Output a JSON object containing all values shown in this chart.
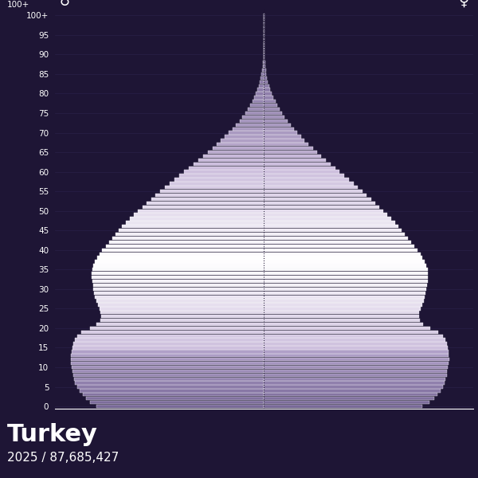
{
  "title": "Turkey",
  "subtitle": "2025 / 87,685,427",
  "male_symbol": "♂",
  "female_symbol": "♀",
  "bg_color": "#1e1535",
  "bar_edge_color": "white",
  "center_line_color": "#2a1f4a",
  "grid_color": "#2e2550",
  "text_color": "white",
  "ages": [
    0,
    1,
    2,
    3,
    4,
    5,
    6,
    7,
    8,
    9,
    10,
    11,
    12,
    13,
    14,
    15,
    16,
    17,
    18,
    19,
    20,
    21,
    22,
    23,
    24,
    25,
    26,
    27,
    28,
    29,
    30,
    31,
    32,
    33,
    34,
    35,
    36,
    37,
    38,
    39,
    40,
    41,
    42,
    43,
    44,
    45,
    46,
    47,
    48,
    49,
    50,
    51,
    52,
    53,
    54,
    55,
    56,
    57,
    58,
    59,
    60,
    61,
    62,
    63,
    64,
    65,
    66,
    67,
    68,
    69,
    70,
    71,
    72,
    73,
    74,
    75,
    76,
    77,
    78,
    79,
    80,
    81,
    82,
    83,
    84,
    85,
    86,
    87,
    88,
    89,
    90,
    91,
    92,
    93,
    94,
    95,
    96,
    97,
    98,
    99,
    100
  ],
  "male": [
    760000,
    790000,
    810000,
    825000,
    838000,
    850000,
    858000,
    863000,
    867000,
    870000,
    873000,
    876000,
    878000,
    877000,
    875000,
    872000,
    868000,
    860000,
    850000,
    830000,
    790000,
    760000,
    745000,
    740000,
    742000,
    748000,
    755000,
    762000,
    768000,
    772000,
    775000,
    778000,
    780000,
    782000,
    782000,
    780000,
    775000,
    768000,
    758000,
    748000,
    735000,
    720000,
    705000,
    690000,
    675000,
    660000,
    645000,
    628000,
    610000,
    592000,
    573000,
    553000,
    533000,
    513000,
    493000,
    473000,
    452000,
    430000,
    408000,
    386000,
    364000,
    342000,
    320000,
    298000,
    276000,
    254000,
    234000,
    214000,
    196000,
    178000,
    160000,
    143000,
    127000,
    112000,
    98000,
    86000,
    74000,
    63000,
    53000,
    44000,
    37000,
    30000,
    24000,
    19000,
    15000,
    11500,
    8800,
    6600,
    4900,
    3600,
    2600,
    1850,
    1300,
    900,
    620,
    420,
    280,
    180,
    110,
    65,
    35
  ],
  "female": [
    720000,
    752000,
    773000,
    788000,
    800000,
    812000,
    820000,
    825000,
    829000,
    832000,
    835000,
    838000,
    840000,
    839000,
    837000,
    834000,
    830000,
    822000,
    812000,
    792000,
    753000,
    723000,
    708000,
    703000,
    705000,
    711000,
    718000,
    724000,
    730000,
    734000,
    737000,
    740000,
    742000,
    744000,
    744000,
    742000,
    737000,
    730000,
    720000,
    710000,
    697000,
    682000,
    667000,
    652000,
    638000,
    624000,
    610000,
    594000,
    577000,
    560000,
    542000,
    523000,
    504000,
    485000,
    466000,
    447000,
    427000,
    406000,
    385000,
    364000,
    343000,
    323000,
    302000,
    281000,
    260000,
    240000,
    221000,
    202000,
    184000,
    167000,
    151000,
    135000,
    121000,
    107000,
    94000,
    82000,
    71000,
    60000,
    51000,
    42000,
    35000,
    28000,
    22000,
    17000,
    13500,
    10300,
    7800,
    5800,
    4300,
    3100,
    2200,
    1550,
    1080,
    740,
    500,
    335,
    220,
    140,
    85,
    50,
    28
  ],
  "xlim": 950000,
  "ytick_positions": [
    0,
    5,
    10,
    15,
    20,
    25,
    30,
    35,
    40,
    45,
    50,
    55,
    60,
    65,
    70,
    75,
    80,
    85,
    90,
    95,
    100
  ]
}
